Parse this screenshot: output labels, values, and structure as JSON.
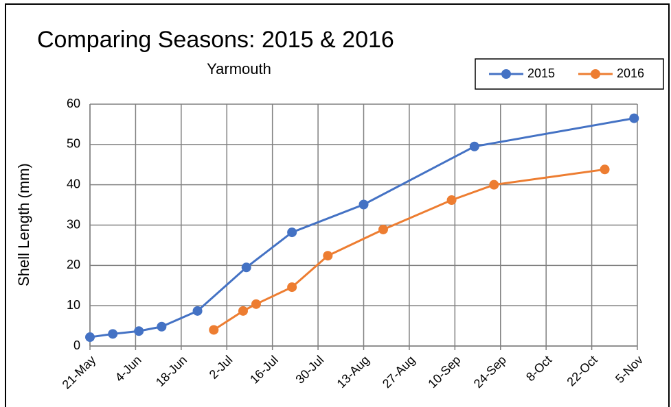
{
  "chart_data": {
    "type": "line",
    "title": "Comparing Seasons: 2015 & 2016",
    "subtitle": "Yarmouth",
    "y_label": "Shell Length (mm)",
    "xlim": [
      "21-May",
      "5-Nov"
    ],
    "xticks": [
      "21-May",
      "4-Jun",
      "18-Jun",
      "2-Jul",
      "16-Jul",
      "30-Jul",
      "13-Aug",
      "27-Aug",
      "10-Sep",
      "24-Sep",
      "8-Oct",
      "22-Oct",
      "5-Nov"
    ],
    "ylim": [
      0,
      60
    ],
    "yticks": [
      0,
      10,
      20,
      30,
      40,
      50,
      60
    ],
    "grid": true,
    "legend": "top-right",
    "series": [
      {
        "name": "2015",
        "color": "#4472c4",
        "x": [
          "21-May",
          "28-May",
          "5-Jun",
          "12-Jun",
          "23-Jun",
          "8-Jul",
          "22-Jul",
          "13-Aug",
          "16-Sep",
          "4-Nov"
        ],
        "values": [
          2.2,
          3.0,
          3.7,
          4.8,
          8.7,
          19.5,
          28.2,
          35.1,
          49.5,
          56.5
        ]
      },
      {
        "name": "2016",
        "color": "#ed7d31",
        "x": [
          "28-Jun",
          "7-Jul",
          "11-Jul",
          "22-Jul",
          "2-Aug",
          "19-Aug",
          "9-Sep",
          "22-Sep",
          "26-Oct"
        ],
        "values": [
          4.0,
          8.7,
          10.4,
          14.6,
          22.4,
          28.9,
          36.2,
          40.0,
          43.8
        ]
      }
    ]
  }
}
